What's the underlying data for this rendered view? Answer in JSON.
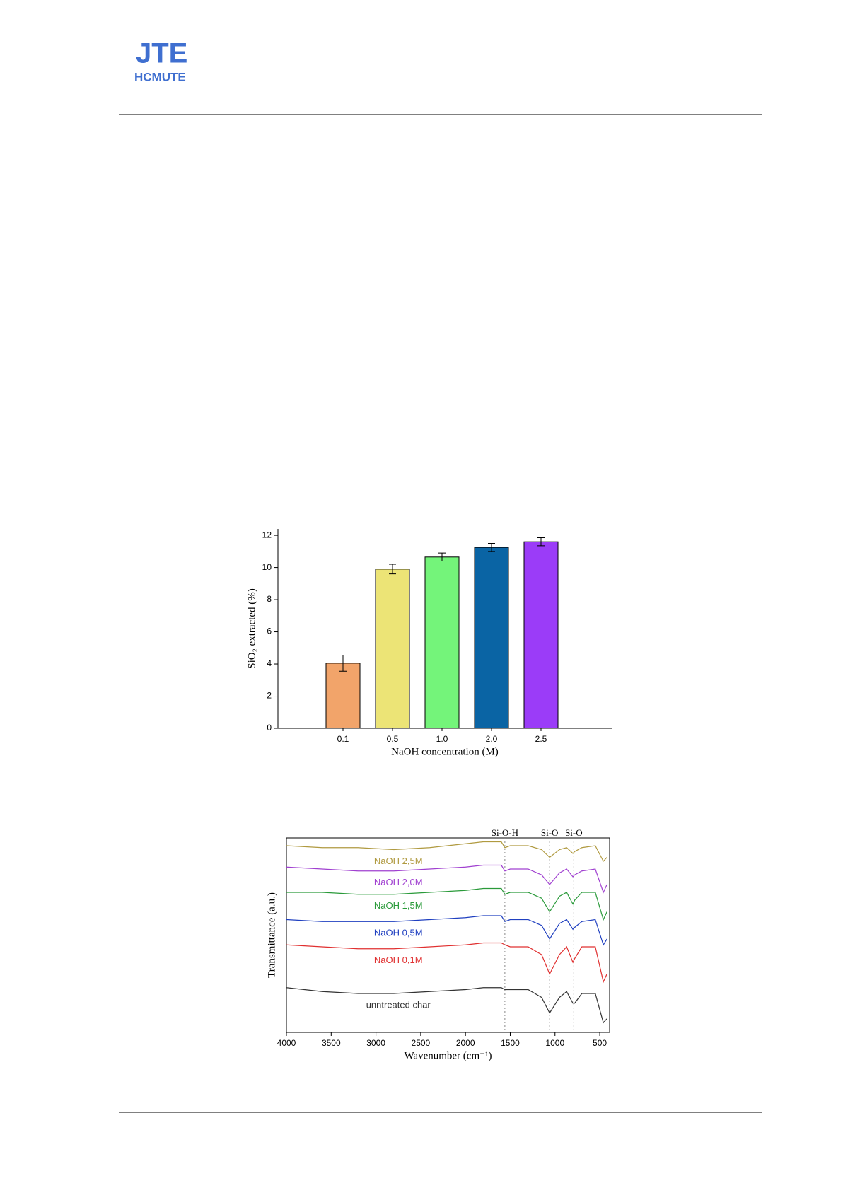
{
  "header": {
    "logo_top": "JTE",
    "logo_bottom": "HCMUTE"
  },
  "chart_data": [
    {
      "type": "bar",
      "xlabel": "NaOH concentration (M)",
      "ylabel": "SiO₂ extracted (%)",
      "categories": [
        "0.1",
        "0.5",
        "1.0",
        "2.0",
        "2.5"
      ],
      "values": [
        4.05,
        9.9,
        10.65,
        11.25,
        11.6
      ],
      "errors": [
        0.5,
        0.3,
        0.25,
        0.25,
        0.25
      ],
      "colors": [
        "#f2a46a",
        "#ece476",
        "#74f47a",
        "#0a64a4",
        "#9b3cf8"
      ],
      "ylim": [
        0,
        12.4
      ],
      "yticks": [
        0,
        2,
        4,
        6,
        8,
        10,
        12
      ]
    },
    {
      "type": "line",
      "xlabel": "Wavenumber (cm⁻¹)",
      "ylabel": "Transmittance (a.u.)",
      "x": [
        4000,
        3600,
        3200,
        2800,
        2400,
        2000,
        1800,
        1600,
        1560,
        1500,
        1300,
        1150,
        1060,
        950,
        870,
        800,
        780,
        700,
        550,
        460,
        420
      ],
      "xlim": [
        4000,
        390
      ],
      "xticks": [
        4000,
        3500,
        3000,
        2500,
        2000,
        1500,
        1000,
        500
      ],
      "ylim": [
        0,
        100
      ],
      "series": [
        {
          "name": "unntreated char",
          "color": "#333333",
          "values": [
            23,
            21,
            20,
            20,
            21,
            22,
            23,
            23,
            22,
            22,
            22,
            18,
            10,
            18,
            21,
            15,
            15,
            20,
            20,
            5,
            7
          ]
        },
        {
          "name": "NaOH 0,1M",
          "color": "#e03030",
          "values": [
            45,
            44,
            43,
            43,
            44,
            45,
            46,
            46,
            45,
            44,
            44,
            40,
            30,
            40,
            44,
            36,
            38,
            44,
            44,
            26,
            30
          ]
        },
        {
          "name": "NaOH 0,5M",
          "color": "#2040c0",
          "values": [
            58,
            57,
            57,
            57,
            58,
            59,
            60,
            60,
            57,
            58,
            58,
            55,
            48,
            56,
            58,
            53,
            54,
            57,
            58,
            45,
            48
          ]
        },
        {
          "name": "NaOH 1,5M",
          "color": "#2a9a3a",
          "values": [
            72,
            72,
            71,
            71,
            72,
            73,
            74,
            74,
            71,
            72,
            72,
            69,
            62,
            70,
            72,
            66,
            68,
            72,
            72,
            58,
            62
          ]
        },
        {
          "name": "NaOH 2,0M",
          "color": "#a040d0",
          "values": [
            85,
            84,
            83,
            83,
            84,
            85,
            86,
            86,
            83,
            84,
            84,
            81,
            76,
            82,
            84,
            80,
            81,
            83,
            84,
            72,
            76
          ]
        },
        {
          "name": "NaOH 2,5M",
          "color": "#b09a40",
          "values": [
            96,
            95,
            95,
            94,
            95,
            97,
            98,
            98,
            95,
            96,
            96,
            94,
            90,
            94,
            95,
            92,
            93,
            95,
            96,
            88,
            90
          ]
        }
      ],
      "annotations": [
        {
          "text": "Si-O-H",
          "x": 1560
        },
        {
          "text": "Si-O",
          "x": 1060
        },
        {
          "text": "Si-O",
          "x": 790
        }
      ]
    }
  ]
}
